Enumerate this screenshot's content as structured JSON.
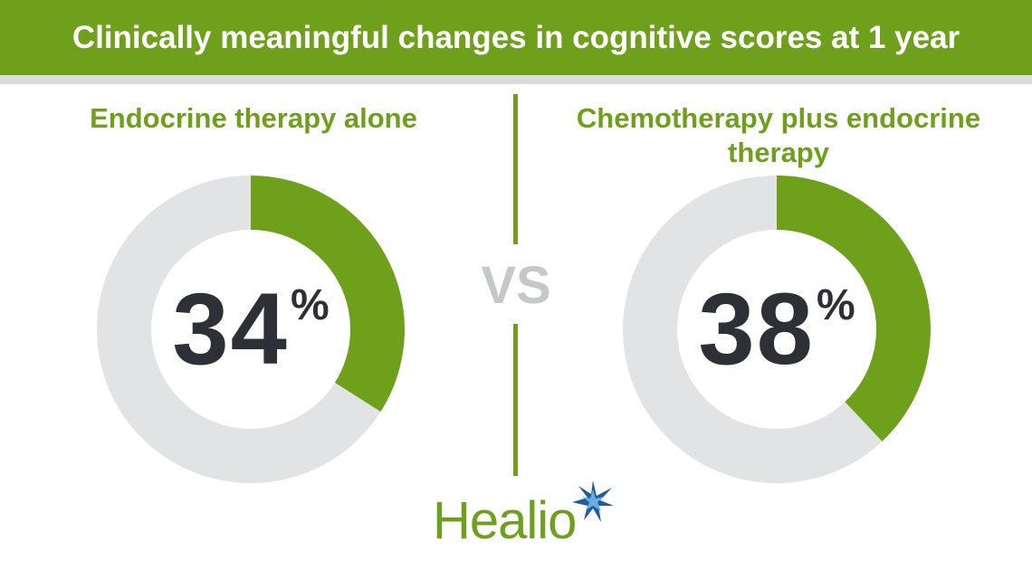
{
  "header": {
    "title": "Clinically meaningful changes in cognitive scores at 1 year"
  },
  "separator": "VS",
  "brand": {
    "name": "Healio",
    "logo_icon": "star-burst-icon"
  },
  "colors": {
    "accent_green": "#6fa01c",
    "banner_rule": "#d9dbdd",
    "ring_gray": "#e1e3e5",
    "value_text": "#2d3036",
    "vs_gray": "#c5c7c9",
    "brand_blue": "#1f5d9e",
    "brand_light_blue": "#6aaee0"
  },
  "chart_data": [
    {
      "type": "pie",
      "title": "Endocrine therapy alone",
      "value": 34,
      "unit": "%",
      "slices": [
        {
          "value": 34,
          "color": "#6fa01c"
        },
        {
          "value": 66,
          "color": "#e1e3e5"
        }
      ]
    },
    {
      "type": "pie",
      "title": "Chemotherapy plus endocrine therapy",
      "value": 38,
      "unit": "%",
      "slices": [
        {
          "value": 38,
          "color": "#6fa01c"
        },
        {
          "value": 62,
          "color": "#e1e3e5"
        }
      ]
    }
  ]
}
